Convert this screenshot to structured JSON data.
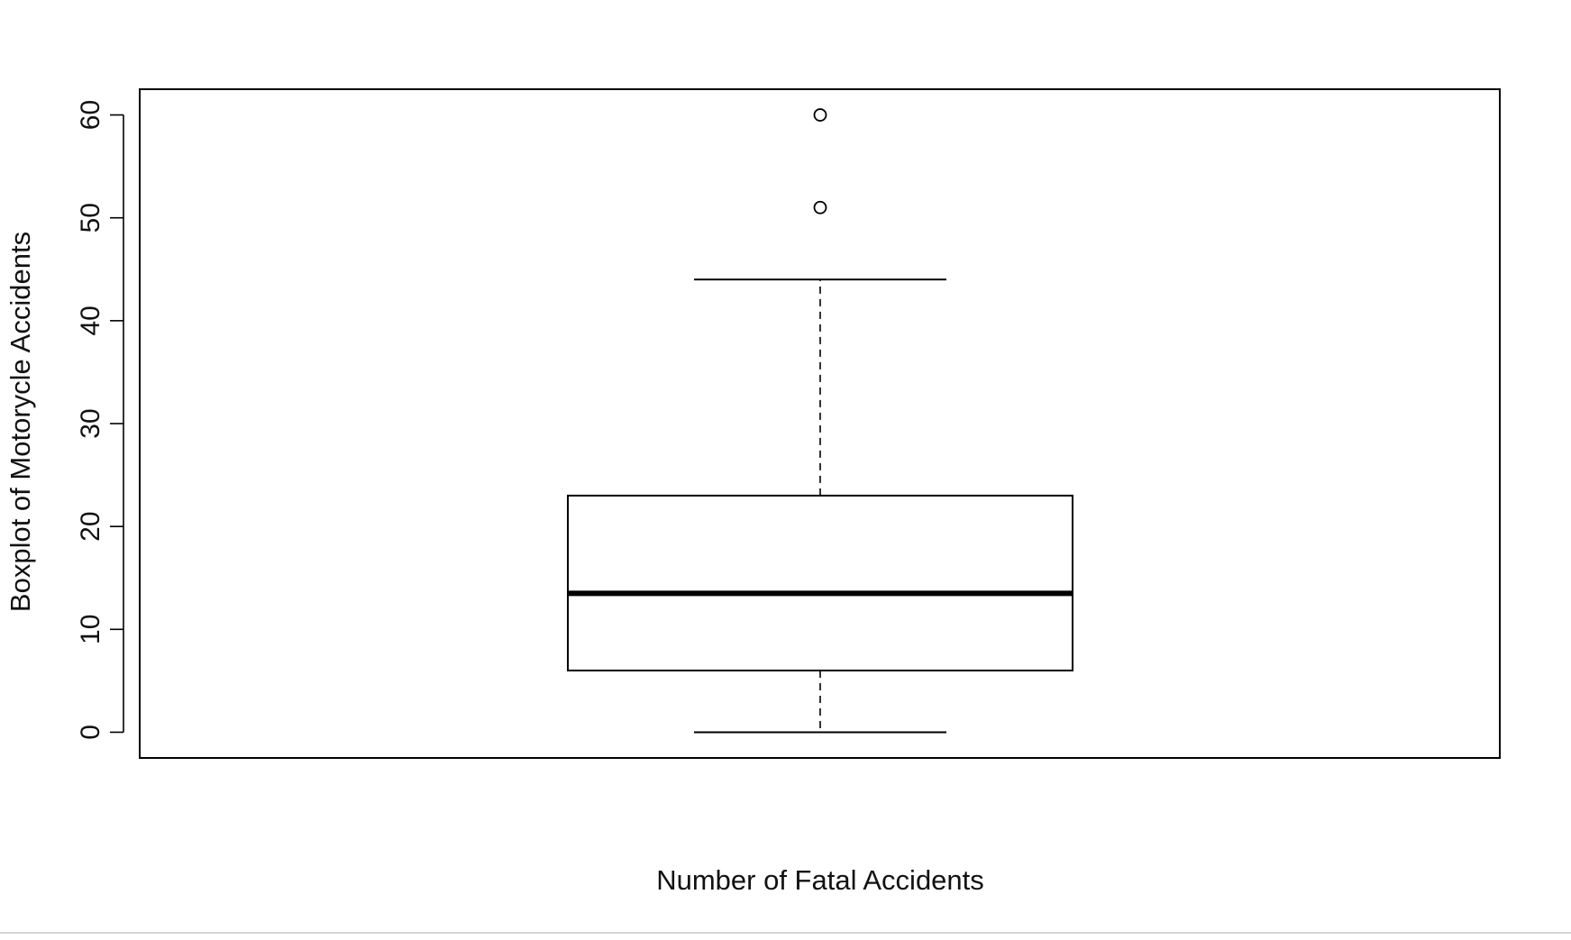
{
  "chart_data": {
    "type": "boxplot",
    "title": "",
    "xlabel": "Number of Fatal Accidents",
    "ylabel": "Boxplot of Motorycle Accidents",
    "ylim": [
      -2.5,
      62.5
    ],
    "yticks": [
      0,
      10,
      20,
      30,
      40,
      50,
      60
    ],
    "ytick_labels": [
      "0",
      "10",
      "20",
      "30",
      "40",
      "50",
      "60"
    ],
    "grid": false,
    "legend": "none",
    "box": {
      "whisker_low": 0,
      "q1": 6,
      "median": 13.5,
      "q3": 23,
      "whisker_high": 44
    },
    "outliers": [
      51,
      60
    ],
    "colors": {
      "stroke": "#000000",
      "background": "#ffffff"
    }
  }
}
